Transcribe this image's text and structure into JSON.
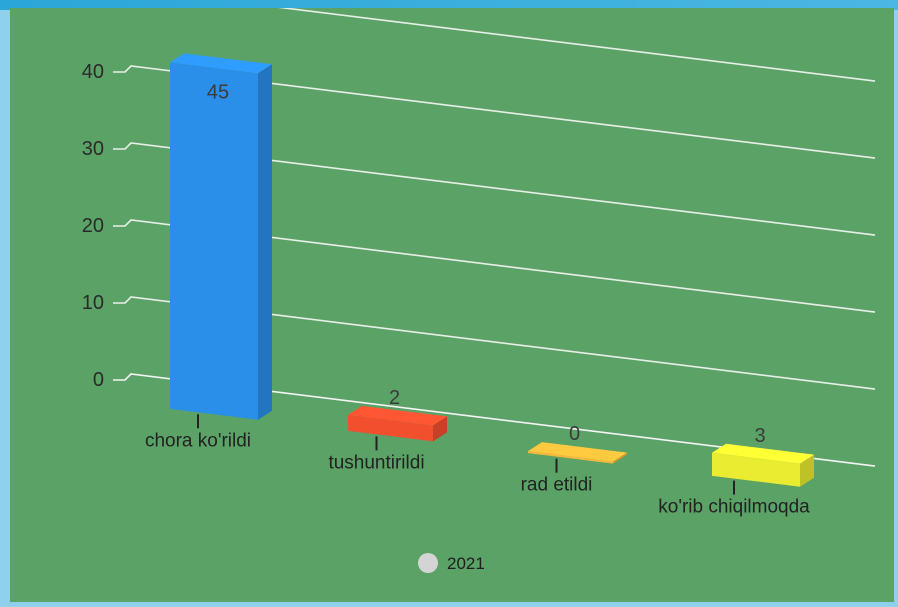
{
  "chart_data": {
    "type": "bar",
    "categories": [
      "chora ko'rildi",
      "tushuntirildi",
      "rad etildi",
      "ko'rib chiqilmoqda"
    ],
    "series": [
      {
        "name": "2021",
        "values": [
          45,
          2,
          0,
          3
        ]
      }
    ],
    "colors": [
      "#2a8fe8",
      "#f24f2e",
      "#f6b83a",
      "#e9ec30"
    ],
    "yticks": [
      0,
      10,
      20,
      30,
      40
    ],
    "ylim": [
      0,
      50
    ],
    "grid": true,
    "legend_position": "bottom-center",
    "legend_marker_color": "#d4d4d4",
    "style": "3d-perspective"
  }
}
